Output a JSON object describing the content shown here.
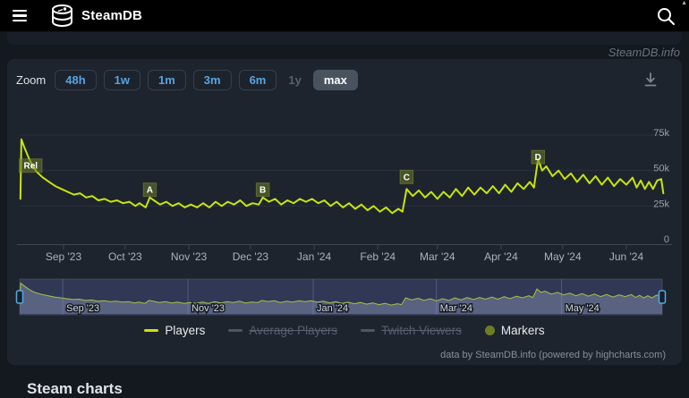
{
  "header": {
    "title": "SteamDB",
    "menu_icon": "hamburger-icon",
    "logo_icon": "steamdb-database-logo",
    "search_icon": "search-icon",
    "scroll_up_glyph": "▲"
  },
  "watermark": "SteamDB.info",
  "toolbar": {
    "zoom_label": "Zoom",
    "download_icon": "download-icon",
    "ranges": [
      {
        "label": "48h",
        "state": "enabled"
      },
      {
        "label": "1w",
        "state": "enabled"
      },
      {
        "label": "1m",
        "state": "enabled"
      },
      {
        "label": "3m",
        "state": "enabled"
      },
      {
        "label": "6m",
        "state": "enabled"
      },
      {
        "label": "1y",
        "state": "disabled"
      },
      {
        "label": "max",
        "state": "selected"
      }
    ]
  },
  "chart_data": {
    "type": "line",
    "title": "",
    "xlabel": "",
    "ylabel": "",
    "ylim_players": [
      0,
      80000
    ],
    "grid": true,
    "legend_position": "bottom-center",
    "yticks": [
      {
        "label": "75k",
        "value": 75
      },
      {
        "label": "50k",
        "value": 50
      },
      {
        "label": "25k",
        "value": 25
      },
      {
        "label": "0",
        "value": 0
      }
    ],
    "x_unit": "days since release (2023-08-11), range ends 2024-06-18",
    "xticks": [
      [
        "Sep '23",
        21
      ],
      [
        "Oct '23",
        51
      ],
      [
        "Nov '23",
        82
      ],
      [
        "Dec '23",
        112
      ],
      [
        "Jan '24",
        143
      ],
      [
        "Feb '24",
        174
      ],
      [
        "Mar '24",
        203
      ],
      [
        "Apr '24",
        234
      ],
      [
        "May '24",
        264
      ],
      [
        "Jun '24",
        295
      ]
    ],
    "navigator_xticks": [
      [
        "Sep '23",
        21
      ],
      [
        "Nov '23",
        82
      ],
      [
        "Jan '24",
        143
      ],
      [
        "Mar '24",
        203
      ],
      [
        "May '24",
        264
      ]
    ],
    "series": [
      {
        "name": "Players",
        "color": "#c8e40e",
        "visible": true,
        "points_day_valueK": [
          [
            0,
            30
          ],
          [
            0.5,
            72
          ],
          [
            2,
            66
          ],
          [
            4,
            59
          ],
          [
            6,
            53
          ],
          [
            8,
            49
          ],
          [
            11,
            45
          ],
          [
            14,
            42
          ],
          [
            17,
            39
          ],
          [
            20,
            37
          ],
          [
            23,
            35
          ],
          [
            26,
            33
          ],
          [
            29,
            34
          ],
          [
            32,
            31
          ],
          [
            35,
            32
          ],
          [
            38,
            29
          ],
          [
            41,
            30
          ],
          [
            44,
            28
          ],
          [
            47,
            29
          ],
          [
            50,
            27
          ],
          [
            53,
            28
          ],
          [
            56,
            25
          ],
          [
            58,
            27
          ],
          [
            61,
            24
          ],
          [
            63,
            31
          ],
          [
            65,
            29
          ],
          [
            68,
            26
          ],
          [
            71,
            28
          ],
          [
            74,
            25
          ],
          [
            77,
            27
          ],
          [
            80,
            24
          ],
          [
            83,
            26
          ],
          [
            86,
            24
          ],
          [
            89,
            27
          ],
          [
            92,
            24
          ],
          [
            95,
            28
          ],
          [
            98,
            25
          ],
          [
            101,
            28
          ],
          [
            104,
            26
          ],
          [
            107,
            29
          ],
          [
            110,
            25
          ],
          [
            113,
            27
          ],
          [
            116,
            26
          ],
          [
            118,
            31
          ],
          [
            121,
            28
          ],
          [
            124,
            30
          ],
          [
            127,
            26
          ],
          [
            130,
            29
          ],
          [
            133,
            27
          ],
          [
            136,
            30
          ],
          [
            139,
            28
          ],
          [
            142,
            30
          ],
          [
            145,
            27
          ],
          [
            148,
            29
          ],
          [
            151,
            25
          ],
          [
            154,
            28
          ],
          [
            157,
            24
          ],
          [
            160,
            27
          ],
          [
            163,
            23
          ],
          [
            166,
            26
          ],
          [
            169,
            22
          ],
          [
            172,
            25
          ],
          [
            175,
            21
          ],
          [
            178,
            24
          ],
          [
            181,
            20
          ],
          [
            184,
            23
          ],
          [
            186,
            21
          ],
          [
            188,
            37
          ],
          [
            191,
            32
          ],
          [
            194,
            36
          ],
          [
            197,
            31
          ],
          [
            200,
            35
          ],
          [
            203,
            30
          ],
          [
            206,
            35
          ],
          [
            209,
            31
          ],
          [
            212,
            37
          ],
          [
            215,
            32
          ],
          [
            218,
            38
          ],
          [
            221,
            33
          ],
          [
            224,
            38
          ],
          [
            227,
            34
          ],
          [
            230,
            39
          ],
          [
            233,
            34
          ],
          [
            236,
            40
          ],
          [
            239,
            35
          ],
          [
            242,
            41
          ],
          [
            245,
            37
          ],
          [
            248,
            42
          ],
          [
            250,
            38
          ],
          [
            252,
            58
          ],
          [
            254,
            50
          ],
          [
            256,
            53
          ],
          [
            259,
            46
          ],
          [
            262,
            50
          ],
          [
            265,
            44
          ],
          [
            268,
            48
          ],
          [
            271,
            42
          ],
          [
            274,
            47
          ],
          [
            277,
            41
          ],
          [
            280,
            46
          ],
          [
            283,
            40
          ],
          [
            286,
            45
          ],
          [
            289,
            39
          ],
          [
            292,
            44
          ],
          [
            295,
            40
          ],
          [
            298,
            45
          ],
          [
            300,
            38
          ],
          [
            302,
            43
          ],
          [
            304,
            37
          ],
          [
            306,
            42
          ],
          [
            308,
            37
          ],
          [
            310,
            43
          ],
          [
            312,
            44
          ],
          [
            313,
            34
          ]
        ]
      }
    ],
    "hidden_series": [
      {
        "name": "Average Players"
      },
      {
        "name": "Twitch Viewers"
      }
    ],
    "markers": [
      {
        "label": "Rel",
        "day": 0,
        "label_value_k": 50
      },
      {
        "label": "A",
        "day": 63,
        "label_value_k": 33
      },
      {
        "label": "B",
        "day": 118,
        "label_value_k": 33
      },
      {
        "label": "C",
        "day": 188,
        "label_value_k": 42
      },
      {
        "label": "D",
        "day": 252,
        "label_value_k": 56
      }
    ],
    "legend": [
      {
        "label": "Players",
        "type": "line",
        "color": "#c8e40e",
        "active": true
      },
      {
        "label": "Average Players",
        "type": "line",
        "color": "#4c5665",
        "active": false
      },
      {
        "label": "Twitch Viewers",
        "type": "line",
        "color": "#4c5665",
        "active": false
      },
      {
        "label": "Markers",
        "type": "circle",
        "color": "#6e7c26",
        "active": true
      }
    ]
  },
  "credit": "data by SteamDB.info (powered by highcharts.com)",
  "bottom_heading": "Steam charts",
  "colors": {
    "header_bg": "#000000",
    "page_bg": "#14181f",
    "panel_bg": "#1e242d",
    "accent_blue": "#56a4e3",
    "players_line": "#c8e40e",
    "marker_box": "rgba(108,122,36,0.55)",
    "selected_range_bg": "#49535f",
    "navigator_mask": "rgba(90,104,190,0.28)"
  }
}
